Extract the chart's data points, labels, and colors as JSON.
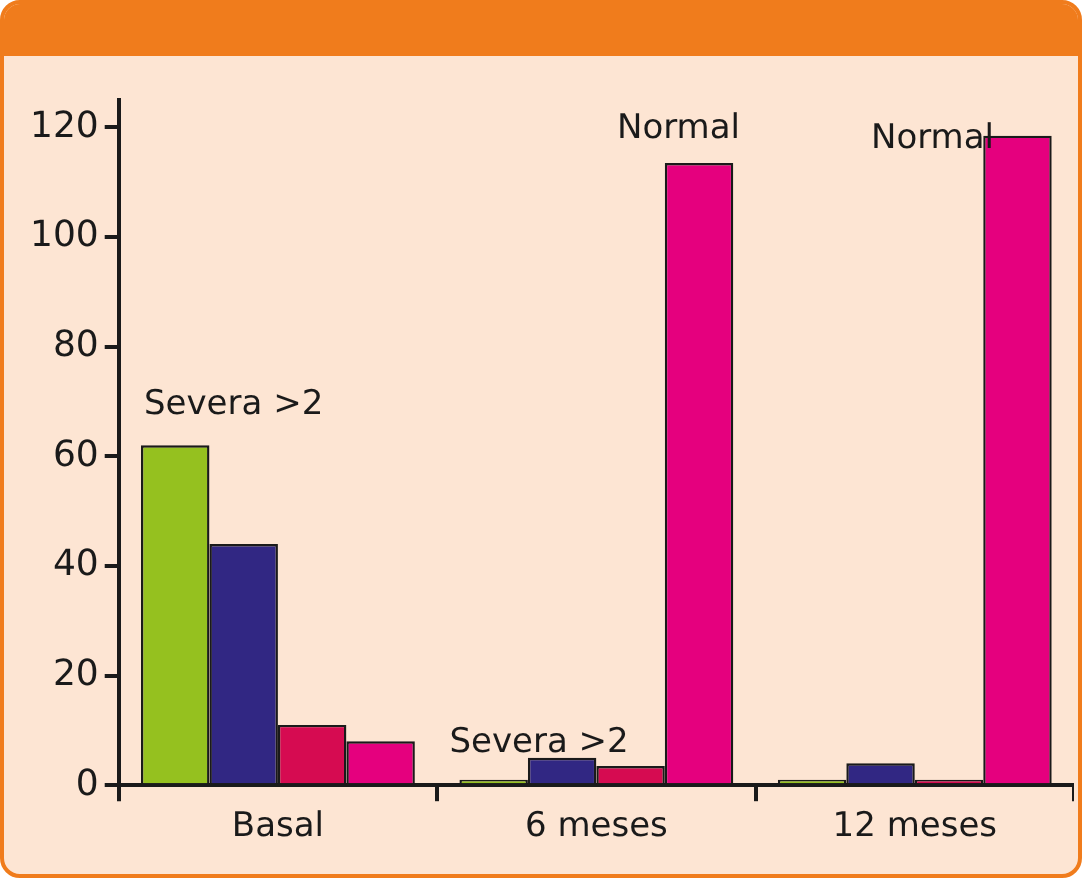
{
  "chart_data": {
    "type": "bar",
    "categories": [
      "Basal",
      "6 meses",
      "12 meses"
    ],
    "series": [
      {
        "color": "#95c11f",
        "values": [
          62,
          1,
          1
        ]
      },
      {
        "color": "#312783",
        "values": [
          44,
          5,
          4
        ]
      },
      {
        "color": "#d60b51",
        "values": [
          11,
          3.5,
          1
        ]
      },
      {
        "color": "#e5007e",
        "values": [
          8,
          113.5,
          118.5
        ]
      }
    ],
    "ylim": [
      0,
      125
    ],
    "yticks": [
      0,
      20,
      40,
      60,
      80,
      100,
      120
    ],
    "grid": false,
    "legend": false,
    "annotations": [
      "Severa >2",
      {
        "text": "Severa >2",
        "x": "6 meses",
        "y": 1
      },
      "Normal",
      "Normal"
    ]
  }
}
